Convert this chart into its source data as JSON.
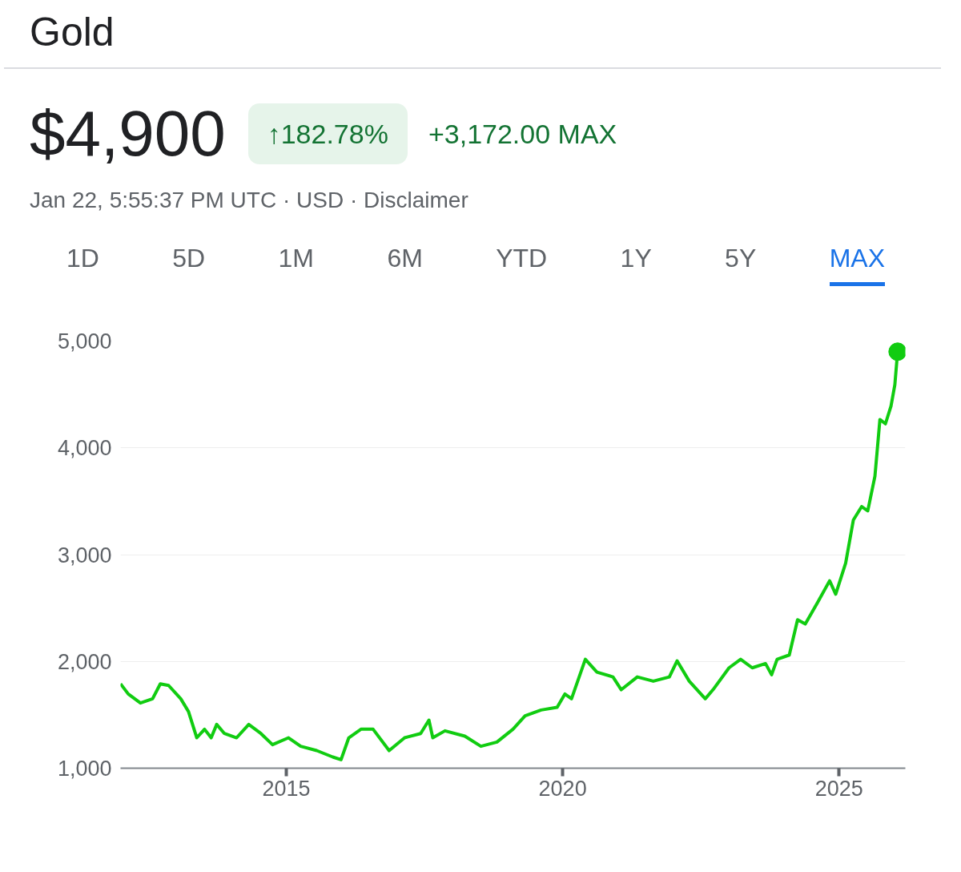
{
  "chart_data": {
    "type": "line",
    "title": "Gold",
    "subtitle": "Jan 22, 5:55:37 PM UTC · USD · Disclaimer",
    "annotations": [
      "$4,900",
      "↑182.78%",
      "+3,172.00 MAX",
      "1D",
      "5D",
      "1M",
      "6M",
      "YTD",
      "1Y",
      "5Y",
      "MAX"
    ],
    "series": [
      {
        "color": "#11cc11",
        "x": [
          2012.0,
          2012.14,
          2012.36,
          2012.58,
          2012.72,
          2012.87,
          2013.09,
          2013.23,
          2013.38,
          2013.52,
          2013.64,
          2013.74,
          2013.88,
          2014.1,
          2014.32,
          2014.54,
          2014.75,
          2015.04,
          2015.26,
          2015.55,
          2015.84,
          2015.99,
          2016.13,
          2016.35,
          2016.57,
          2016.86,
          2017.14,
          2017.43,
          2017.58,
          2017.65,
          2017.87,
          2018.23,
          2018.52,
          2018.81,
          2019.1,
          2019.32,
          2019.61,
          2019.9,
          2020.04,
          2020.16,
          2020.41,
          2020.62,
          2020.91,
          2021.06,
          2021.35,
          2021.64,
          2021.93,
          2022.07,
          2022.29,
          2022.58,
          2022.72,
          2023.01,
          2023.22,
          2023.43,
          2023.67,
          2023.78,
          2023.88,
          2024.1,
          2024.25,
          2024.39,
          2024.61,
          2024.83,
          2024.94,
          2025.12,
          2025.26,
          2025.41,
          2025.52,
          2025.65,
          2025.74,
          2025.84,
          2025.94,
          2026.01,
          2026.06
        ],
        "values": [
          1790,
          1695,
          1610,
          1650,
          1790,
          1775,
          1650,
          1530,
          1285,
          1365,
          1285,
          1410,
          1325,
          1285,
          1410,
          1325,
          1220,
          1285,
          1205,
          1165,
          1105,
          1080,
          1285,
          1365,
          1365,
          1165,
          1285,
          1325,
          1450,
          1285,
          1350,
          1300,
          1205,
          1245,
          1365,
          1490,
          1545,
          1570,
          1695,
          1650,
          2020,
          1900,
          1855,
          1735,
          1855,
          1815,
          1855,
          2005,
          1815,
          1650,
          1735,
          1940,
          2020,
          1940,
          1980,
          1875,
          2020,
          2060,
          2390,
          2350,
          2550,
          2755,
          2630,
          2920,
          3325,
          3450,
          3410,
          3735,
          4265,
          4225,
          4390,
          4590,
          4900
        ]
      },
      {
        "type": "scatter",
        "marker": "circle",
        "color": "#11cc11",
        "x": [
          2026.06
        ],
        "values": [
          4900
        ]
      }
    ],
    "xlim": [
      2012.0,
      2026.2
    ],
    "xticks": [
      2015,
      2020,
      2025
    ],
    "ylim": [
      1000,
      5000
    ],
    "yticks": [
      {
        "value": 1000,
        "label": "1,000"
      },
      {
        "value": 2000,
        "label": "2,000"
      },
      {
        "value": 3000,
        "label": "3,000"
      },
      {
        "value": 4000,
        "label": "4,000"
      },
      {
        "value": 5000,
        "label": "5,000"
      }
    ],
    "grid": "y"
  }
}
